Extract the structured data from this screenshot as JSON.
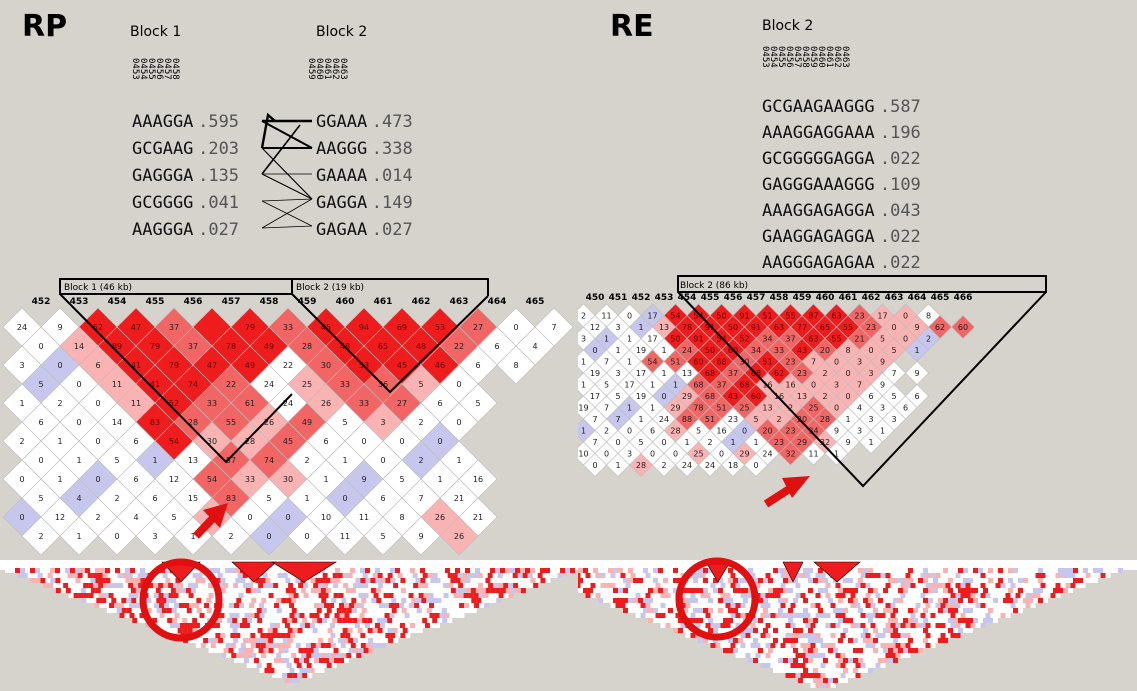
{
  "colors": {
    "background": "#d6d2cc",
    "ld_strong": "#ee1c1c",
    "ld_mid": "#f26565",
    "ld_light": "#f9b3b3",
    "ld_blue": "#c7c7ee",
    "block_outline": "#000000",
    "highlight_red": "#e01010"
  },
  "icons": [
    "arrow-icon",
    "circle-highlight-icon",
    "marker-triangle-icon"
  ],
  "panels": {
    "rp": {
      "label": "RP",
      "blocks": [
        {
          "title": "Block 1",
          "markers": [
            "0453",
            "0454",
            "0455",
            "0456",
            "0457",
            "0458"
          ],
          "haplotypes": [
            {
              "seq": "AAAGGA",
              "freq": ".595"
            },
            {
              "seq": "GCGAAG",
              "freq": ".203"
            },
            {
              "seq": "GAGGGA",
              "freq": ".135"
            },
            {
              "seq": "GCGGGG",
              "freq": ".041"
            },
            {
              "seq": "AAGGGA",
              "freq": ".027"
            }
          ]
        },
        {
          "title": "Block 2",
          "markers": [
            "0459",
            "0460",
            "0461",
            "0462",
            "0463"
          ],
          "haplotypes": [
            {
              "seq": "GGAAA",
              "freq": ".473"
            },
            {
              "seq": "AAGGG",
              "freq": ".338"
            },
            {
              "seq": "GAAAA",
              "freq": ".014"
            },
            {
              "seq": "GAGGA",
              "freq": ".149"
            },
            {
              "seq": "GAGAA",
              "freq": ".027"
            }
          ]
        }
      ],
      "ldplot": {
        "block_labels": [
          "Block 1 (46 kb)",
          "Block 2 (19 kb)"
        ],
        "markers": [
          "452",
          "453",
          "454",
          "455",
          "456",
          "457",
          "458",
          "459",
          "460",
          "461",
          "462",
          "463",
          "464",
          "465"
        ],
        "cell_rows": [
          [
            "24",
            "9",
            "52",
            "47",
            "37",
            "",
            "79",
            "33",
            "45",
            "94",
            "69",
            "53",
            "27",
            "0",
            "7"
          ],
          [
            "0",
            "14",
            "89",
            "79",
            "37",
            "78",
            "49",
            "28",
            "48",
            "65",
            "48",
            "22",
            "6",
            "4"
          ],
          [
            "3",
            "0",
            "6",
            "41",
            "79",
            "47",
            "49",
            "22",
            "30",
            "53",
            "45",
            "46",
            "6",
            "8"
          ],
          [
            "5",
            "0",
            "11",
            "41",
            "74",
            "22",
            "24",
            "25",
            "33",
            "36",
            "5",
            "0"
          ],
          [
            "1",
            "2",
            "0",
            "11",
            "52",
            "33",
            "61",
            "24",
            "26",
            "33",
            "27",
            "6",
            "5"
          ],
          [
            "6",
            "0",
            "14",
            "83",
            "28",
            "55",
            "26",
            "49",
            "5",
            "3",
            "2",
            "0"
          ],
          [
            "2",
            "1",
            "0",
            "6",
            "54",
            "30",
            "28",
            "45",
            "6",
            "0",
            "0",
            "0"
          ],
          [
            "0",
            "1",
            "5",
            "1",
            "13",
            "57",
            "74",
            "2",
            "1",
            "0",
            "2",
            "1"
          ],
          [
            "0",
            "1",
            "0",
            "6",
            "12",
            "54",
            "33",
            "30",
            "1",
            "9",
            "5",
            "1",
            "16"
          ],
          [
            "5",
            "4",
            "2",
            "6",
            "15",
            "83",
            "5",
            "1",
            "0",
            "6",
            "7",
            "21"
          ],
          [
            "0",
            "12",
            "2",
            "4",
            "5",
            "26",
            "0",
            "0",
            "10",
            "11",
            "8",
            "26",
            "21"
          ],
          [
            "2",
            "1",
            "0",
            "3",
            "1",
            "2",
            "0",
            "0",
            "11",
            "5",
            "9",
            "26"
          ]
        ]
      }
    },
    "re": {
      "label": "RE",
      "blocks": [
        {
          "title": "Block 2",
          "markers": [
            "0453",
            "0454",
            "0455",
            "0456",
            "0457",
            "0458",
            "0459",
            "0460",
            "0461",
            "0462",
            "0463"
          ],
          "haplotypes": [
            {
              "seq": "GCGAAGAAGGG",
              "freq": ".587"
            },
            {
              "seq": "AAAGGAGGAAA",
              "freq": ".196"
            },
            {
              "seq": "GCGGGGGAGGA",
              "freq": ".022"
            },
            {
              "seq": "GAGGGAAAGGG",
              "freq": ".109"
            },
            {
              "seq": "AAAGGAGAGGA",
              "freq": ".043"
            },
            {
              "seq": "GAAGGAGAGGA",
              "freq": ".022"
            },
            {
              "seq": "AAGGGAGAGAA",
              "freq": ".022"
            }
          ]
        }
      ],
      "ldplot": {
        "block_labels": [
          "Block 2 (86 kb)"
        ],
        "markers": [
          "450",
          "451",
          "452",
          "453",
          "454",
          "455",
          "456",
          "457",
          "458",
          "459",
          "460",
          "461",
          "462",
          "463",
          "464",
          "465",
          "466"
        ],
        "cell_rows": [
          [
            "2",
            "11",
            "0",
            "17",
            "54",
            "54",
            "50",
            "91",
            "51",
            "55",
            "87",
            "63",
            "23",
            "17",
            "0",
            "8"
          ],
          [
            "12",
            "3",
            "1",
            "13",
            "78",
            "91",
            "50",
            "91",
            "63",
            "77",
            "65",
            "55",
            "23",
            "0",
            "9",
            "62",
            "60"
          ],
          [
            "3",
            "1",
            "1",
            "17",
            "50",
            "91",
            "54",
            "52",
            "34",
            "37",
            "63",
            "55",
            "21",
            "5",
            "0",
            "2"
          ],
          [
            "0",
            "1",
            "19",
            "1",
            "24",
            "50",
            "60",
            "34",
            "33",
            "43",
            "20",
            "8",
            "0",
            "5",
            "1"
          ],
          [
            "1",
            "7",
            "1",
            "54",
            "51",
            "60",
            "68",
            "30",
            "51",
            "23",
            "7",
            "0",
            "3",
            "9"
          ],
          [
            "19",
            "3",
            "17",
            "1",
            "13",
            "68",
            "37",
            "68",
            "62",
            "23",
            "2",
            "0",
            "3",
            "7",
            "9"
          ],
          [
            "1",
            "5",
            "17",
            "1",
            "1",
            "68",
            "37",
            "68",
            "16",
            "16",
            "0",
            "3",
            "7",
            "9"
          ],
          [
            "17",
            "5",
            "19",
            "0",
            "29",
            "68",
            "43",
            "60",
            "16",
            "13",
            "2",
            "0",
            "6",
            "5",
            "6"
          ],
          [
            "19",
            "7",
            "1",
            "1",
            "29",
            "78",
            "51",
            "25",
            "13",
            "2",
            "25",
            "0",
            "4",
            "3",
            "6"
          ],
          [
            "7",
            "7",
            "1",
            "24",
            "88",
            "51",
            "23",
            "5",
            "2",
            "20",
            "28",
            "1",
            "3",
            "3"
          ],
          [
            "1",
            "2",
            "0",
            "6",
            "28",
            "5",
            "16",
            "0",
            "20",
            "23",
            "34",
            "9",
            "3",
            "1"
          ],
          [
            "7",
            "0",
            "5",
            "0",
            "1",
            "2",
            "1",
            "1",
            "23",
            "29",
            "32",
            "9",
            "1"
          ],
          [
            "10",
            "0",
            "3",
            "0",
            "0",
            "25",
            "0",
            "29",
            "24",
            "32",
            "11",
            "1"
          ],
          [
            "0",
            "1",
            "28",
            "2",
            "24",
            "24",
            "18",
            "0"
          ]
        ]
      }
    }
  }
}
